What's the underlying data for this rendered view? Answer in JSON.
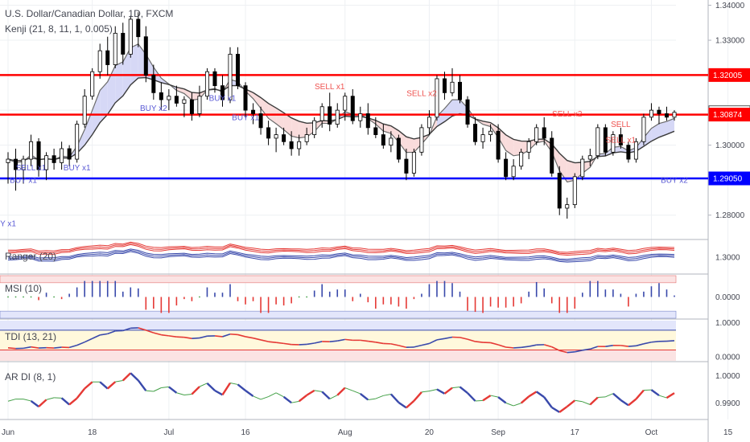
{
  "chart_data": [
    {
      "type": "candlestick",
      "title": "U.S. Dollar/Canadian Dollar, 1D, FXCM",
      "indicator": "Kenji (21, 8, 11, 1, 0.005)",
      "ylim": [
        1.2735,
        1.3415
      ],
      "y_ticks": [
        "1.34000",
        "1.33000",
        "1.30000",
        "1.29000",
        "1.28000"
      ],
      "price_labels": [
        {
          "value": 1.32005,
          "text": "1.32005",
          "color": "#ff0000"
        },
        {
          "value": 1.30941,
          "text": "1.30941",
          "color": "#ffffff"
        },
        {
          "value": 1.30874,
          "text": "1.30874",
          "color": "#ff0000"
        },
        {
          "value": 1.2905,
          "text": "1.29050",
          "color": "#0000ff"
        }
      ],
      "horizontal_lines": [
        {
          "value": 1.32005,
          "color": "#ff0000"
        },
        {
          "value": 1.30874,
          "color": "#ff0000"
        },
        {
          "value": 1.2905,
          "color": "#0000ff"
        }
      ],
      "annotations": [
        {
          "text": "SELL x1",
          "index": 42,
          "value": 1.316,
          "color": "#ef5350"
        },
        {
          "text": "SELL x2",
          "index": 54,
          "value": 1.314,
          "color": "#ef5350"
        },
        {
          "text": "SELL x2",
          "index": 73,
          "value": 1.3082,
          "color": "#ef5350"
        },
        {
          "text": "SELL",
          "index": 80,
          "value": 1.3052,
          "color": "#ef5350"
        },
        {
          "text": "SELL x1",
          "index": 80,
          "value": 1.3007,
          "color": "#ef5350"
        },
        {
          "text": "BUY x2",
          "index": 19,
          "value": 1.3098,
          "color": "#5b5bd6"
        },
        {
          "text": "BUY x1",
          "index": 28,
          "value": 1.3127,
          "color": "#5b5bd6"
        },
        {
          "text": "BUY x1",
          "index": 31,
          "value": 1.3071,
          "color": "#5b5bd6"
        },
        {
          "text": "SELL x1",
          "index": 3,
          "value": 1.2928,
          "color": "#5b5bd6"
        },
        {
          "text": "BUY x1",
          "index": 9,
          "value": 1.2928,
          "color": "#5b5bd6"
        },
        {
          "text": "BUY x1",
          "index": 2,
          "value": 1.2892,
          "color": "#5b5bd6"
        },
        {
          "text": "BUY x2",
          "index": 87,
          "value": 1.2892,
          "color": "#5b5bd6"
        },
        {
          "text": "Y x1",
          "index": 0,
          "value": 1.2768,
          "color": "#5b5bd6"
        }
      ],
      "candles": [
        [
          1.295,
          1.298,
          1.289,
          1.296
        ],
        [
          1.296,
          1.299,
          1.287,
          1.293
        ],
        [
          1.293,
          1.297,
          1.289,
          1.296
        ],
        [
          1.296,
          1.303,
          1.294,
          1.301
        ],
        [
          1.301,
          1.302,
          1.291,
          1.293
        ],
        [
          1.293,
          1.298,
          1.29,
          1.297
        ],
        [
          1.297,
          1.299,
          1.293,
          1.295
        ],
        [
          1.295,
          1.301,
          1.293,
          1.299
        ],
        [
          1.299,
          1.3,
          1.294,
          1.296
        ],
        [
          1.296,
          1.307,
          1.295,
          1.306
        ],
        [
          1.306,
          1.316,
          1.305,
          1.314
        ],
        [
          1.314,
          1.322,
          1.313,
          1.321
        ],
        [
          1.321,
          1.329,
          1.319,
          1.327
        ],
        [
          1.327,
          1.331,
          1.32,
          1.323
        ],
        [
          1.323,
          1.334,
          1.322,
          1.332
        ],
        [
          1.332,
          1.335,
          1.323,
          1.326
        ],
        [
          1.326,
          1.337,
          1.325,
          1.336
        ],
        [
          1.336,
          1.338,
          1.328,
          1.331
        ],
        [
          1.331,
          1.334,
          1.318,
          1.32
        ],
        [
          1.32,
          1.323,
          1.313,
          1.315
        ],
        [
          1.315,
          1.318,
          1.31,
          1.313
        ],
        [
          1.313,
          1.316,
          1.31,
          1.314
        ],
        [
          1.314,
          1.317,
          1.311,
          1.312
        ],
        [
          1.312,
          1.314,
          1.308,
          1.313
        ],
        [
          1.313,
          1.315,
          1.307,
          1.309
        ],
        [
          1.309,
          1.317,
          1.308,
          1.314
        ],
        [
          1.314,
          1.322,
          1.313,
          1.321
        ],
        [
          1.321,
          1.322,
          1.315,
          1.317
        ],
        [
          1.317,
          1.32,
          1.311,
          1.313
        ],
        [
          1.313,
          1.328,
          1.312,
          1.326
        ],
        [
          1.326,
          1.328,
          1.316,
          1.317
        ],
        [
          1.317,
          1.318,
          1.308,
          1.31
        ],
        [
          1.31,
          1.312,
          1.306,
          1.309
        ],
        [
          1.309,
          1.311,
          1.303,
          1.305
        ],
        [
          1.305,
          1.307,
          1.3,
          1.302
        ],
        [
          1.302,
          1.305,
          1.298,
          1.303
        ],
        [
          1.303,
          1.305,
          1.3,
          1.301
        ],
        [
          1.301,
          1.304,
          1.297,
          1.299
        ],
        [
          1.299,
          1.303,
          1.297,
          1.301
        ],
        [
          1.301,
          1.305,
          1.3,
          1.303
        ],
        [
          1.303,
          1.308,
          1.302,
          1.307
        ],
        [
          1.307,
          1.312,
          1.305,
          1.311
        ],
        [
          1.311,
          1.315,
          1.304,
          1.306
        ],
        [
          1.306,
          1.312,
          1.305,
          1.31
        ],
        [
          1.31,
          1.315,
          1.307,
          1.314
        ],
        [
          1.314,
          1.316,
          1.306,
          1.307
        ],
        [
          1.307,
          1.311,
          1.305,
          1.309
        ],
        [
          1.309,
          1.312,
          1.303,
          1.305
        ],
        [
          1.305,
          1.308,
          1.302,
          1.303
        ],
        [
          1.303,
          1.306,
          1.299,
          1.3
        ],
        [
          1.3,
          1.304,
          1.298,
          1.302
        ],
        [
          1.302,
          1.303,
          1.295,
          1.296
        ],
        [
          1.296,
          1.299,
          1.29,
          1.292
        ],
        [
          1.292,
          1.299,
          1.291,
          1.298
        ],
        [
          1.298,
          1.306,
          1.297,
          1.305
        ],
        [
          1.305,
          1.31,
          1.303,
          1.308
        ],
        [
          1.308,
          1.32,
          1.307,
          1.319
        ],
        [
          1.319,
          1.321,
          1.313,
          1.315
        ],
        [
          1.315,
          1.322,
          1.314,
          1.318
        ],
        [
          1.318,
          1.32,
          1.312,
          1.313
        ],
        [
          1.313,
          1.314,
          1.305,
          1.306
        ],
        [
          1.306,
          1.308,
          1.3,
          1.301
        ],
        [
          1.301,
          1.305,
          1.299,
          1.303
        ],
        [
          1.303,
          1.306,
          1.301,
          1.304
        ],
        [
          1.304,
          1.306,
          1.295,
          1.296
        ],
        [
          1.296,
          1.298,
          1.29,
          1.291
        ],
        [
          1.291,
          1.296,
          1.29,
          1.294
        ],
        [
          1.294,
          1.299,
          1.293,
          1.298
        ],
        [
          1.298,
          1.302,
          1.296,
          1.301
        ],
        [
          1.301,
          1.306,
          1.3,
          1.305
        ],
        [
          1.305,
          1.308,
          1.3,
          1.302
        ],
        [
          1.302,
          1.304,
          1.291,
          1.292
        ],
        [
          1.292,
          1.294,
          1.28,
          1.282
        ],
        [
          1.282,
          1.285,
          1.279,
          1.283
        ],
        [
          1.283,
          1.292,
          1.282,
          1.291
        ],
        [
          1.291,
          1.297,
          1.29,
          1.296
        ],
        [
          1.296,
          1.299,
          1.294,
          1.297
        ],
        [
          1.297,
          1.306,
          1.296,
          1.305
        ],
        [
          1.305,
          1.306,
          1.297,
          1.298
        ],
        [
          1.298,
          1.304,
          1.297,
          1.303
        ],
        [
          1.303,
          1.305,
          1.299,
          1.3
        ],
        [
          1.3,
          1.301,
          1.295,
          1.296
        ],
        [
          1.296,
          1.302,
          1.295,
          1.301
        ],
        [
          1.301,
          1.309,
          1.3,
          1.308
        ],
        [
          1.308,
          1.312,
          1.307,
          1.31
        ],
        [
          1.31,
          1.311,
          1.306,
          1.309
        ],
        [
          1.309,
          1.311,
          1.307,
          1.308
        ],
        [
          1.308,
          1.31,
          1.307,
          1.3094
        ]
      ]
    },
    {
      "type": "line",
      "title": "Ranger (20)",
      "ylim": [
        1.2935,
        1.3065
      ],
      "y_ticks": [
        "1.3000"
      ]
    },
    {
      "type": "bar",
      "title": "MSI (10)",
      "ylim": [
        -1.2,
        1.2
      ],
      "y_ticks": [
        "0.0000"
      ]
    },
    {
      "type": "line",
      "title": "TDI (13, 21)",
      "ylim": [
        -0.12,
        1.06
      ],
      "y_ticks": [
        "1.0000",
        "0.0000"
      ]
    },
    {
      "type": "line",
      "title": "AR DI (8, 1)",
      "ylim": [
        0.9845,
        1.0045
      ],
      "y_ticks": [
        "1.0000",
        "0.9900"
      ]
    }
  ],
  "x_labels": [
    {
      "text": "Jun",
      "index": 0
    },
    {
      "text": "18",
      "index": 11
    },
    {
      "text": "Jul",
      "index": 21
    },
    {
      "text": "16",
      "index": 31
    },
    {
      "text": "Aug",
      "index": 44
    },
    {
      "text": "20",
      "index": 55
    },
    {
      "text": "Sep",
      "index": 64
    },
    {
      "text": "17",
      "index": 74
    },
    {
      "text": "Oct",
      "index": 84
    },
    {
      "text": "15",
      "index": 94
    }
  ]
}
